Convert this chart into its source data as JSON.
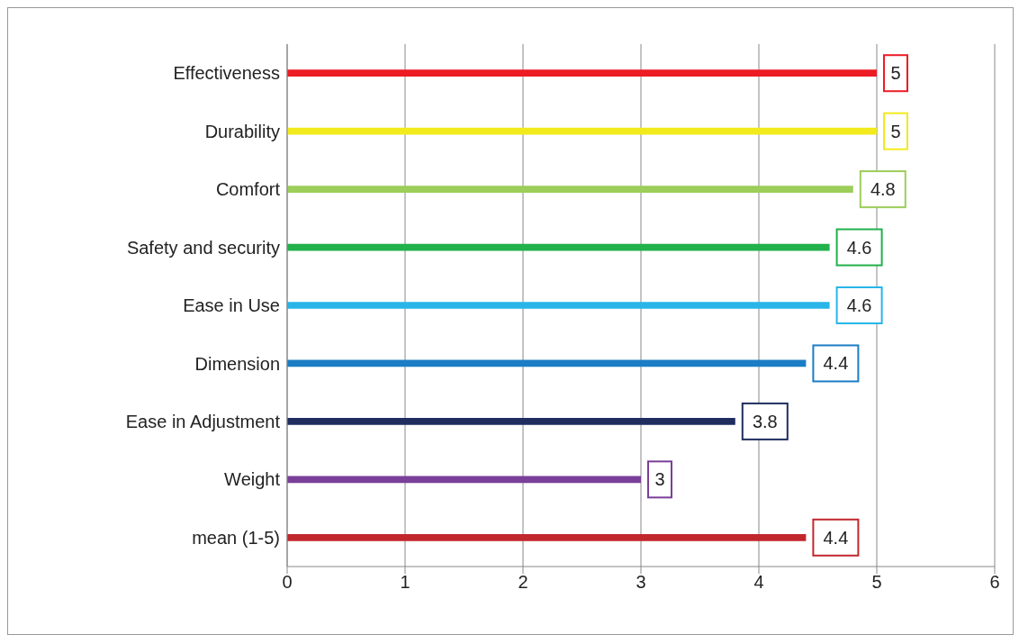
{
  "chart_data": {
    "type": "bar",
    "orientation": "horizontal",
    "categories": [
      "Effectiveness",
      "Durability",
      "Comfort",
      "Safety and security",
      "Ease in Use",
      "Dimension",
      "Ease in Adjustment",
      "Weight",
      "mean (1-5)"
    ],
    "values": [
      5,
      5,
      4.8,
      4.6,
      4.6,
      4.4,
      3.8,
      3,
      4.4
    ],
    "colors": [
      "#ed1c24",
      "#f2ea1c",
      "#9dcd5a",
      "#22b14c",
      "#29b5e8",
      "#1b7dc4",
      "#1f2d5f",
      "#7a3f98",
      "#c1272d"
    ],
    "xlim": [
      0,
      6
    ],
    "xticks": [
      0,
      1,
      2,
      3,
      4,
      5,
      6
    ],
    "grid": "x",
    "data_labels": true
  }
}
